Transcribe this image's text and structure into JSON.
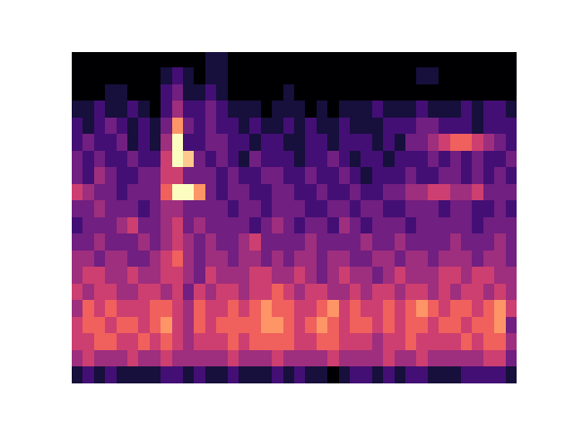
{
  "chart_data": {
    "type": "heatmap",
    "color": "magma",
    "tick_labels": false,
    "cells": [
      [
        0,
        0,
        0,
        0,
        0,
        0,
        0,
        0,
        0,
        0,
        0,
        0,
        1,
        1,
        0,
        0,
        0,
        0,
        0,
        0,
        0,
        0,
        0,
        0,
        0,
        0,
        0,
        0,
        0,
        0,
        0,
        0,
        0,
        0,
        0,
        0,
        0,
        0,
        0,
        0
      ],
      [
        0,
        0,
        0,
        0,
        0,
        0,
        0,
        0,
        1,
        2,
        1,
        0,
        1,
        1,
        0,
        0,
        0,
        0,
        0,
        0,
        0,
        0,
        0,
        0,
        0,
        0,
        0,
        0,
        0,
        0,
        0,
        1,
        1,
        0,
        0,
        0,
        0,
        0,
        0,
        0
      ],
      [
        0,
        0,
        0,
        1,
        1,
        0,
        0,
        0,
        2,
        3,
        1,
        1,
        2,
        1,
        0,
        0,
        0,
        0,
        0,
        1,
        0,
        0,
        0,
        0,
        0,
        0,
        0,
        0,
        0,
        0,
        0,
        0,
        0,
        0,
        0,
        0,
        0,
        0,
        0,
        0
      ],
      [
        1,
        1,
        2,
        1,
        1,
        2,
        1,
        0,
        2,
        4,
        2,
        2,
        3,
        2,
        1,
        1,
        1,
        0,
        1,
        1,
        1,
        0,
        1,
        0,
        1,
        1,
        1,
        2,
        1,
        1,
        1,
        2,
        1,
        1,
        1,
        2,
        1,
        2,
        2,
        1
      ],
      [
        2,
        1,
        2,
        3,
        2,
        1,
        2,
        1,
        3,
        7,
        3,
        2,
        3,
        2,
        2,
        1,
        2,
        1,
        1,
        2,
        1,
        2,
        1,
        1,
        2,
        1,
        1,
        1,
        2,
        2,
        2,
        3,
        3,
        2,
        2,
        2,
        1,
        2,
        2,
        2
      ],
      [
        2,
        3,
        2,
        2,
        3,
        1,
        2,
        1,
        4,
        9,
        2,
        2,
        3,
        3,
        2,
        2,
        1,
        2,
        2,
        1,
        1,
        2,
        2,
        1,
        2,
        2,
        2,
        1,
        2,
        1,
        3,
        3,
        4,
        5,
        6,
        6,
        5,
        4,
        3,
        2
      ],
      [
        3,
        2,
        3,
        2,
        2,
        3,
        2,
        2,
        5,
        9,
        8,
        3,
        2,
        3,
        2,
        1,
        3,
        2,
        2,
        2,
        1,
        2,
        2,
        3,
        2,
        1,
        2,
        2,
        1,
        2,
        2,
        2,
        3,
        2,
        3,
        2,
        3,
        2,
        2,
        3
      ],
      [
        3,
        2,
        4,
        3,
        2,
        2,
        3,
        3,
        5,
        5,
        3,
        3,
        3,
        2,
        3,
        2,
        2,
        3,
        3,
        2,
        2,
        3,
        2,
        2,
        3,
        2,
        1,
        2,
        2,
        2,
        3,
        2,
        2,
        3,
        3,
        2,
        3,
        2,
        3,
        2
      ],
      [
        5,
        4,
        3,
        3,
        2,
        3,
        3,
        3,
        6,
        9,
        9,
        7,
        3,
        2,
        3,
        3,
        2,
        2,
        3,
        3,
        2,
        2,
        3,
        2,
        2,
        3,
        2,
        2,
        3,
        3,
        4,
        4,
        5,
        5,
        4,
        4,
        5,
        3,
        3,
        3
      ],
      [
        3,
        3,
        4,
        3,
        3,
        3,
        2,
        3,
        4,
        4,
        3,
        3,
        3,
        3,
        2,
        3,
        3,
        2,
        3,
        3,
        3,
        2,
        2,
        3,
        3,
        2,
        3,
        3,
        2,
        2,
        3,
        3,
        3,
        2,
        3,
        3,
        2,
        2,
        3,
        2
      ],
      [
        2,
        3,
        3,
        3,
        4,
        5,
        3,
        3,
        4,
        5,
        3,
        4,
        3,
        3,
        3,
        3,
        2,
        3,
        4,
        3,
        2,
        3,
        3,
        2,
        4,
        3,
        2,
        3,
        3,
        3,
        2,
        3,
        3,
        3,
        3,
        3,
        2,
        3,
        3,
        3
      ],
      [
        3,
        3,
        4,
        3,
        3,
        3,
        4,
        3,
        4,
        5,
        4,
        3,
        4,
        3,
        3,
        4,
        5,
        3,
        3,
        3,
        3,
        4,
        3,
        3,
        3,
        3,
        4,
        3,
        3,
        4,
        3,
        3,
        3,
        3,
        4,
        3,
        3,
        3,
        4,
        3
      ],
      [
        4,
        4,
        3,
        4,
        4,
        3,
        3,
        4,
        5,
        6,
        4,
        3,
        4,
        4,
        3,
        4,
        4,
        3,
        4,
        3,
        4,
        4,
        3,
        4,
        4,
        3,
        3,
        4,
        4,
        3,
        4,
        4,
        3,
        4,
        4,
        4,
        3,
        4,
        4,
        3
      ],
      [
        4,
        5,
        5,
        4,
        4,
        5,
        4,
        4,
        5,
        5,
        4,
        3,
        5,
        4,
        4,
        4,
        5,
        5,
        4,
        4,
        5,
        4,
        3,
        4,
        5,
        4,
        4,
        3,
        4,
        5,
        4,
        4,
        4,
        5,
        5,
        4,
        5,
        5,
        4,
        4
      ],
      [
        5,
        4,
        5,
        5,
        4,
        4,
        5,
        5,
        4,
        5,
        3,
        5,
        4,
        5,
        5,
        4,
        5,
        5,
        6,
        5,
        4,
        5,
        5,
        4,
        4,
        5,
        4,
        5,
        5,
        4,
        5,
        5,
        4,
        5,
        4,
        5,
        5,
        4,
        5,
        4
      ],
      [
        4,
        6,
        5,
        6,
        5,
        5,
        5,
        6,
        6,
        5,
        4,
        6,
        5,
        5,
        6,
        5,
        6,
        7,
        6,
        6,
        5,
        5,
        6,
        7,
        5,
        6,
        5,
        5,
        6,
        5,
        6,
        7,
        6,
        5,
        6,
        6,
        5,
        6,
        7,
        5
      ],
      [
        5,
        6,
        6,
        5,
        6,
        6,
        5,
        6,
        7,
        5,
        4,
        6,
        5,
        6,
        6,
        6,
        6,
        7,
        7,
        6,
        5,
        6,
        7,
        6,
        5,
        6,
        6,
        5,
        6,
        5,
        6,
        6,
        5,
        6,
        6,
        5,
        6,
        6,
        7,
        3
      ],
      [
        5,
        5,
        6,
        6,
        5,
        5,
        6,
        5,
        6,
        5,
        4,
        5,
        5,
        5,
        6,
        5,
        6,
        6,
        6,
        6,
        5,
        5,
        6,
        6,
        5,
        5,
        5,
        4,
        5,
        5,
        6,
        5,
        5,
        5,
        5,
        6,
        5,
        6,
        6,
        4
      ],
      [
        4,
        5,
        4,
        4,
        4,
        5,
        4,
        4,
        5,
        4,
        4,
        4,
        4,
        4,
        5,
        4,
        4,
        4,
        5,
        4,
        4,
        4,
        4,
        5,
        4,
        4,
        4,
        4,
        5,
        4,
        4,
        5,
        4,
        4,
        4,
        4,
        4,
        5,
        5,
        3
      ],
      [
        1,
        2,
        1,
        2,
        1,
        1,
        1,
        1,
        2,
        2,
        1,
        2,
        1,
        1,
        2,
        1,
        1,
        1,
        2,
        1,
        2,
        1,
        1,
        0,
        1,
        2,
        2,
        1,
        2,
        1,
        2,
        2,
        1,
        1,
        1,
        2,
        2,
        2,
        2,
        1
      ]
    ]
  }
}
